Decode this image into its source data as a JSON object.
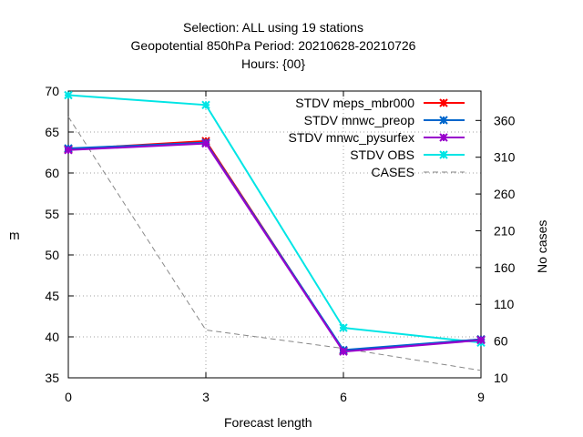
{
  "chart_data": {
    "type": "line",
    "title_lines": [
      "Selection: ALL using    19 stations",
      "Geopotential 850hPa   Period: 20210628-20210726",
      "Hours: {00}"
    ],
    "xlabel": "Forecast length",
    "ylabel": "m",
    "y2label": "No cases",
    "x": [
      0,
      3,
      6,
      9
    ],
    "xlim": [
      0,
      9
    ],
    "xticks": [
      0,
      3,
      6,
      9
    ],
    "ylim": [
      35,
      70
    ],
    "yticks": [
      35,
      40,
      45,
      50,
      55,
      60,
      65,
      70
    ],
    "y2lim": [
      10,
      400
    ],
    "y2ticks": [
      10,
      60,
      110,
      160,
      210,
      260,
      310,
      360
    ],
    "grid": true,
    "legend_position": "top-right",
    "series": [
      {
        "name": "STDV meps_mbr000",
        "values": [
          62.9,
          63.9,
          38.3,
          39.7
        ],
        "color": "#ff0000",
        "axis": "y"
      },
      {
        "name": "STDV mnwc_preop",
        "values": [
          63.0,
          63.7,
          38.4,
          39.7
        ],
        "color": "#0066cc",
        "axis": "y"
      },
      {
        "name": "STDV mnwc_pysurfex",
        "values": [
          62.8,
          63.6,
          38.2,
          39.6
        ],
        "color": "#9900cc",
        "axis": "y"
      },
      {
        "name": "STDV OBS",
        "values": [
          69.5,
          68.3,
          41.1,
          39.3
        ],
        "color": "#00e5e5",
        "axis": "y"
      },
      {
        "name": "CASES",
        "values": [
          365,
          75,
          50,
          20
        ],
        "color": "#888888",
        "axis": "y2",
        "dashed": true
      }
    ]
  }
}
